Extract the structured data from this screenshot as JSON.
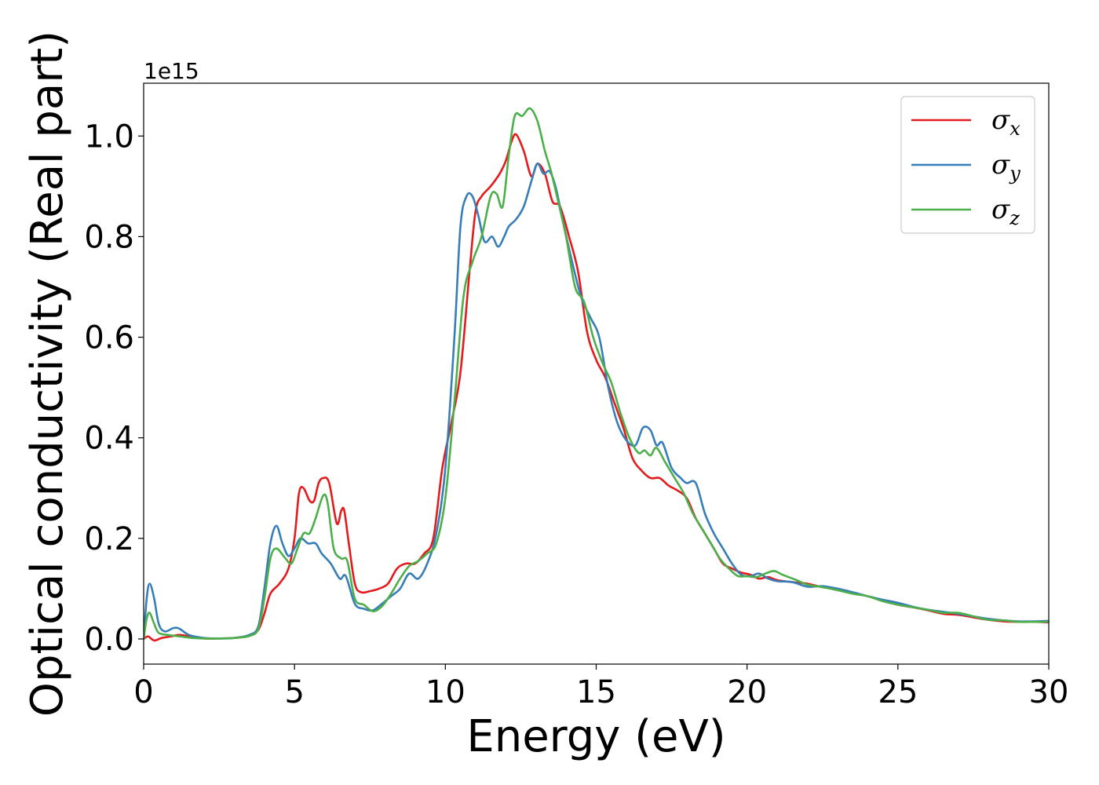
{
  "chart_data": {
    "type": "line",
    "title": "",
    "xlabel": "Energy (eV)",
    "ylabel": "Optical conductivity (Real part)",
    "y_offset_label": "1e15",
    "xlim": [
      0,
      30
    ],
    "ylim": [
      -0.05,
      1.105
    ],
    "xticks": [
      0,
      5,
      10,
      15,
      20,
      25,
      30
    ],
    "xtick_labels": [
      "0",
      "5",
      "10",
      "15",
      "20",
      "25",
      "30"
    ],
    "yticks": [
      0.0,
      0.2,
      0.4,
      0.6,
      0.8,
      1.0
    ],
    "ytick_labels": [
      "0.0",
      "0.2",
      "0.4",
      "0.6",
      "0.8",
      "1.0"
    ],
    "grid": false,
    "legend_position": "top-right",
    "series": [
      {
        "name": "σ",
        "subscript": "x",
        "color": "#e41a1c",
        "points": [
          [
            0,
            0.0
          ],
          [
            0.15,
            0.005
          ],
          [
            0.35,
            -0.003
          ],
          [
            0.6,
            0.002
          ],
          [
            0.9,
            0.005
          ],
          [
            1.2,
            0.008
          ],
          [
            1.6,
            0.004
          ],
          [
            2.0,
            0.001
          ],
          [
            2.5,
            0.001
          ],
          [
            3.0,
            0.002
          ],
          [
            3.5,
            0.006
          ],
          [
            3.8,
            0.018
          ],
          [
            4.0,
            0.05
          ],
          [
            4.2,
            0.09
          ],
          [
            4.5,
            0.11
          ],
          [
            4.8,
            0.14
          ],
          [
            5.0,
            0.2
          ],
          [
            5.15,
            0.29
          ],
          [
            5.3,
            0.3
          ],
          [
            5.5,
            0.275
          ],
          [
            5.65,
            0.275
          ],
          [
            5.8,
            0.31
          ],
          [
            5.95,
            0.32
          ],
          [
            6.15,
            0.31
          ],
          [
            6.4,
            0.23
          ],
          [
            6.55,
            0.255
          ],
          [
            6.65,
            0.255
          ],
          [
            6.8,
            0.19
          ],
          [
            7.0,
            0.11
          ],
          [
            7.2,
            0.093
          ],
          [
            7.5,
            0.095
          ],
          [
            7.8,
            0.1
          ],
          [
            8.1,
            0.11
          ],
          [
            8.4,
            0.14
          ],
          [
            8.7,
            0.15
          ],
          [
            9.0,
            0.15
          ],
          [
            9.3,
            0.17
          ],
          [
            9.6,
            0.2
          ],
          [
            9.9,
            0.34
          ],
          [
            10.2,
            0.43
          ],
          [
            10.5,
            0.53
          ],
          [
            10.8,
            0.73
          ],
          [
            11.0,
            0.85
          ],
          [
            11.2,
            0.88
          ],
          [
            11.5,
            0.9
          ],
          [
            11.8,
            0.925
          ],
          [
            12.0,
            0.95
          ],
          [
            12.2,
            0.99
          ],
          [
            12.35,
            1.003
          ],
          [
            12.6,
            0.97
          ],
          [
            12.85,
            0.92
          ],
          [
            13.05,
            0.945
          ],
          [
            13.3,
            0.925
          ],
          [
            13.55,
            0.87
          ],
          [
            13.8,
            0.86
          ],
          [
            14.1,
            0.8
          ],
          [
            14.4,
            0.73
          ],
          [
            14.7,
            0.61
          ],
          [
            15.0,
            0.555
          ],
          [
            15.3,
            0.52
          ],
          [
            15.6,
            0.47
          ],
          [
            15.9,
            0.42
          ],
          [
            16.2,
            0.36
          ],
          [
            16.5,
            0.335
          ],
          [
            16.8,
            0.32
          ],
          [
            17.1,
            0.32
          ],
          [
            17.4,
            0.305
          ],
          [
            17.7,
            0.295
          ],
          [
            18.0,
            0.28
          ],
          [
            18.3,
            0.24
          ],
          [
            18.6,
            0.21
          ],
          [
            18.9,
            0.18
          ],
          [
            19.2,
            0.15
          ],
          [
            19.5,
            0.14
          ],
          [
            19.8,
            0.132
          ],
          [
            20.1,
            0.128
          ],
          [
            20.4,
            0.12
          ],
          [
            20.7,
            0.123
          ],
          [
            21.0,
            0.117
          ],
          [
            21.5,
            0.113
          ],
          [
            22.0,
            0.11
          ],
          [
            22.5,
            0.103
          ],
          [
            23.0,
            0.1
          ],
          [
            23.5,
            0.092
          ],
          [
            24.0,
            0.085
          ],
          [
            24.5,
            0.077
          ],
          [
            25.0,
            0.068
          ],
          [
            25.5,
            0.063
          ],
          [
            26.0,
            0.057
          ],
          [
            26.5,
            0.05
          ],
          [
            27.0,
            0.048
          ],
          [
            27.5,
            0.043
          ],
          [
            28.0,
            0.038
          ],
          [
            28.5,
            0.035
          ],
          [
            29.0,
            0.034
          ],
          [
            29.5,
            0.034
          ],
          [
            30.0,
            0.033
          ]
        ]
      },
      {
        "name": "σ",
        "subscript": "y",
        "color": "#377eb8",
        "points": [
          [
            0,
            0.0
          ],
          [
            0.1,
            0.08
          ],
          [
            0.2,
            0.11
          ],
          [
            0.35,
            0.08
          ],
          [
            0.5,
            0.03
          ],
          [
            0.7,
            0.015
          ],
          [
            1.0,
            0.022
          ],
          [
            1.2,
            0.02
          ],
          [
            1.5,
            0.008
          ],
          [
            2.0,
            0.002
          ],
          [
            2.5,
            0.001
          ],
          [
            3.0,
            0.002
          ],
          [
            3.5,
            0.008
          ],
          [
            3.8,
            0.025
          ],
          [
            4.0,
            0.1
          ],
          [
            4.2,
            0.19
          ],
          [
            4.4,
            0.225
          ],
          [
            4.6,
            0.19
          ],
          [
            4.8,
            0.165
          ],
          [
            5.0,
            0.18
          ],
          [
            5.2,
            0.2
          ],
          [
            5.45,
            0.19
          ],
          [
            5.7,
            0.19
          ],
          [
            5.9,
            0.17
          ],
          [
            6.2,
            0.15
          ],
          [
            6.5,
            0.12
          ],
          [
            6.7,
            0.125
          ],
          [
            7.0,
            0.07
          ],
          [
            7.3,
            0.06
          ],
          [
            7.6,
            0.057
          ],
          [
            7.9,
            0.07
          ],
          [
            8.2,
            0.085
          ],
          [
            8.5,
            0.1
          ],
          [
            8.8,
            0.13
          ],
          [
            9.1,
            0.12
          ],
          [
            9.4,
            0.15
          ],
          [
            9.7,
            0.21
          ],
          [
            10.0,
            0.34
          ],
          [
            10.3,
            0.6
          ],
          [
            10.5,
            0.82
          ],
          [
            10.7,
            0.88
          ],
          [
            10.9,
            0.88
          ],
          [
            11.1,
            0.84
          ],
          [
            11.3,
            0.79
          ],
          [
            11.55,
            0.8
          ],
          [
            11.75,
            0.78
          ],
          [
            11.95,
            0.8
          ],
          [
            12.1,
            0.82
          ],
          [
            12.35,
            0.835
          ],
          [
            12.6,
            0.86
          ],
          [
            12.85,
            0.91
          ],
          [
            13.05,
            0.945
          ],
          [
            13.25,
            0.925
          ],
          [
            13.45,
            0.93
          ],
          [
            13.65,
            0.9
          ],
          [
            13.9,
            0.83
          ],
          [
            14.2,
            0.75
          ],
          [
            14.5,
            0.68
          ],
          [
            14.8,
            0.64
          ],
          [
            15.1,
            0.6
          ],
          [
            15.4,
            0.5
          ],
          [
            15.7,
            0.43
          ],
          [
            16.0,
            0.395
          ],
          [
            16.3,
            0.385
          ],
          [
            16.55,
            0.42
          ],
          [
            16.8,
            0.415
          ],
          [
            17.0,
            0.385
          ],
          [
            17.2,
            0.39
          ],
          [
            17.5,
            0.34
          ],
          [
            17.8,
            0.32
          ],
          [
            18.0,
            0.31
          ],
          [
            18.3,
            0.31
          ],
          [
            18.6,
            0.25
          ],
          [
            18.9,
            0.21
          ],
          [
            19.2,
            0.18
          ],
          [
            19.5,
            0.15
          ],
          [
            19.8,
            0.128
          ],
          [
            20.1,
            0.125
          ],
          [
            20.4,
            0.13
          ],
          [
            20.7,
            0.12
          ],
          [
            21.0,
            0.115
          ],
          [
            21.5,
            0.113
          ],
          [
            22.0,
            0.104
          ],
          [
            22.5,
            0.105
          ],
          [
            23.0,
            0.1
          ],
          [
            23.5,
            0.093
          ],
          [
            24.0,
            0.085
          ],
          [
            24.5,
            0.078
          ],
          [
            25.0,
            0.072
          ],
          [
            25.5,
            0.064
          ],
          [
            26.0,
            0.058
          ],
          [
            26.5,
            0.054
          ],
          [
            27.0,
            0.05
          ],
          [
            27.5,
            0.045
          ],
          [
            28.0,
            0.04
          ],
          [
            28.5,
            0.037
          ],
          [
            29.0,
            0.035
          ],
          [
            29.5,
            0.035
          ],
          [
            30.0,
            0.036
          ]
        ]
      },
      {
        "name": "σ",
        "subscript": "z",
        "color": "#4daf4a",
        "points": [
          [
            0,
            0.0
          ],
          [
            0.1,
            0.04
          ],
          [
            0.2,
            0.052
          ],
          [
            0.35,
            0.03
          ],
          [
            0.5,
            0.012
          ],
          [
            0.8,
            0.008
          ],
          [
            1.2,
            0.005
          ],
          [
            1.6,
            0.002
          ],
          [
            2.0,
            0.001
          ],
          [
            2.5,
            0.001
          ],
          [
            3.0,
            0.002
          ],
          [
            3.5,
            0.006
          ],
          [
            3.8,
            0.02
          ],
          [
            4.0,
            0.08
          ],
          [
            4.2,
            0.16
          ],
          [
            4.4,
            0.18
          ],
          [
            4.7,
            0.16
          ],
          [
            4.9,
            0.15
          ],
          [
            5.1,
            0.18
          ],
          [
            5.3,
            0.21
          ],
          [
            5.5,
            0.21
          ],
          [
            5.7,
            0.24
          ],
          [
            5.95,
            0.285
          ],
          [
            6.1,
            0.27
          ],
          [
            6.3,
            0.18
          ],
          [
            6.55,
            0.16
          ],
          [
            6.75,
            0.155
          ],
          [
            7.0,
            0.08
          ],
          [
            7.3,
            0.068
          ],
          [
            7.6,
            0.055
          ],
          [
            7.9,
            0.065
          ],
          [
            8.2,
            0.09
          ],
          [
            8.5,
            0.12
          ],
          [
            8.8,
            0.145
          ],
          [
            9.1,
            0.155
          ],
          [
            9.4,
            0.17
          ],
          [
            9.7,
            0.19
          ],
          [
            10.0,
            0.28
          ],
          [
            10.3,
            0.47
          ],
          [
            10.6,
            0.68
          ],
          [
            10.9,
            0.75
          ],
          [
            11.2,
            0.8
          ],
          [
            11.5,
            0.88
          ],
          [
            11.7,
            0.885
          ],
          [
            11.9,
            0.86
          ],
          [
            12.1,
            0.96
          ],
          [
            12.3,
            1.04
          ],
          [
            12.55,
            1.04
          ],
          [
            12.8,
            1.055
          ],
          [
            13.05,
            1.03
          ],
          [
            13.3,
            0.97
          ],
          [
            13.5,
            0.93
          ],
          [
            13.7,
            0.88
          ],
          [
            14.0,
            0.8
          ],
          [
            14.3,
            0.7
          ],
          [
            14.6,
            0.67
          ],
          [
            14.9,
            0.6
          ],
          [
            15.2,
            0.55
          ],
          [
            15.5,
            0.51
          ],
          [
            15.8,
            0.45
          ],
          [
            16.1,
            0.4
          ],
          [
            16.4,
            0.37
          ],
          [
            16.6,
            0.375
          ],
          [
            16.8,
            0.365
          ],
          [
            17.0,
            0.38
          ],
          [
            17.3,
            0.35
          ],
          [
            17.6,
            0.32
          ],
          [
            17.9,
            0.29
          ],
          [
            18.2,
            0.25
          ],
          [
            18.5,
            0.22
          ],
          [
            18.8,
            0.19
          ],
          [
            19.1,
            0.16
          ],
          [
            19.4,
            0.14
          ],
          [
            19.7,
            0.125
          ],
          [
            20.0,
            0.125
          ],
          [
            20.3,
            0.123
          ],
          [
            20.6,
            0.13
          ],
          [
            20.9,
            0.135
          ],
          [
            21.2,
            0.127
          ],
          [
            21.6,
            0.118
          ],
          [
            22.0,
            0.108
          ],
          [
            22.5,
            0.103
          ],
          [
            23.0,
            0.097
          ],
          [
            23.5,
            0.09
          ],
          [
            24.0,
            0.085
          ],
          [
            24.5,
            0.075
          ],
          [
            25.0,
            0.068
          ],
          [
            25.5,
            0.063
          ],
          [
            26.0,
            0.058
          ],
          [
            26.5,
            0.052
          ],
          [
            27.0,
            0.052
          ],
          [
            27.5,
            0.045
          ],
          [
            28.0,
            0.038
          ],
          [
            28.5,
            0.037
          ],
          [
            29.0,
            0.034
          ],
          [
            29.5,
            0.034
          ],
          [
            30.0,
            0.034
          ]
        ]
      }
    ]
  }
}
